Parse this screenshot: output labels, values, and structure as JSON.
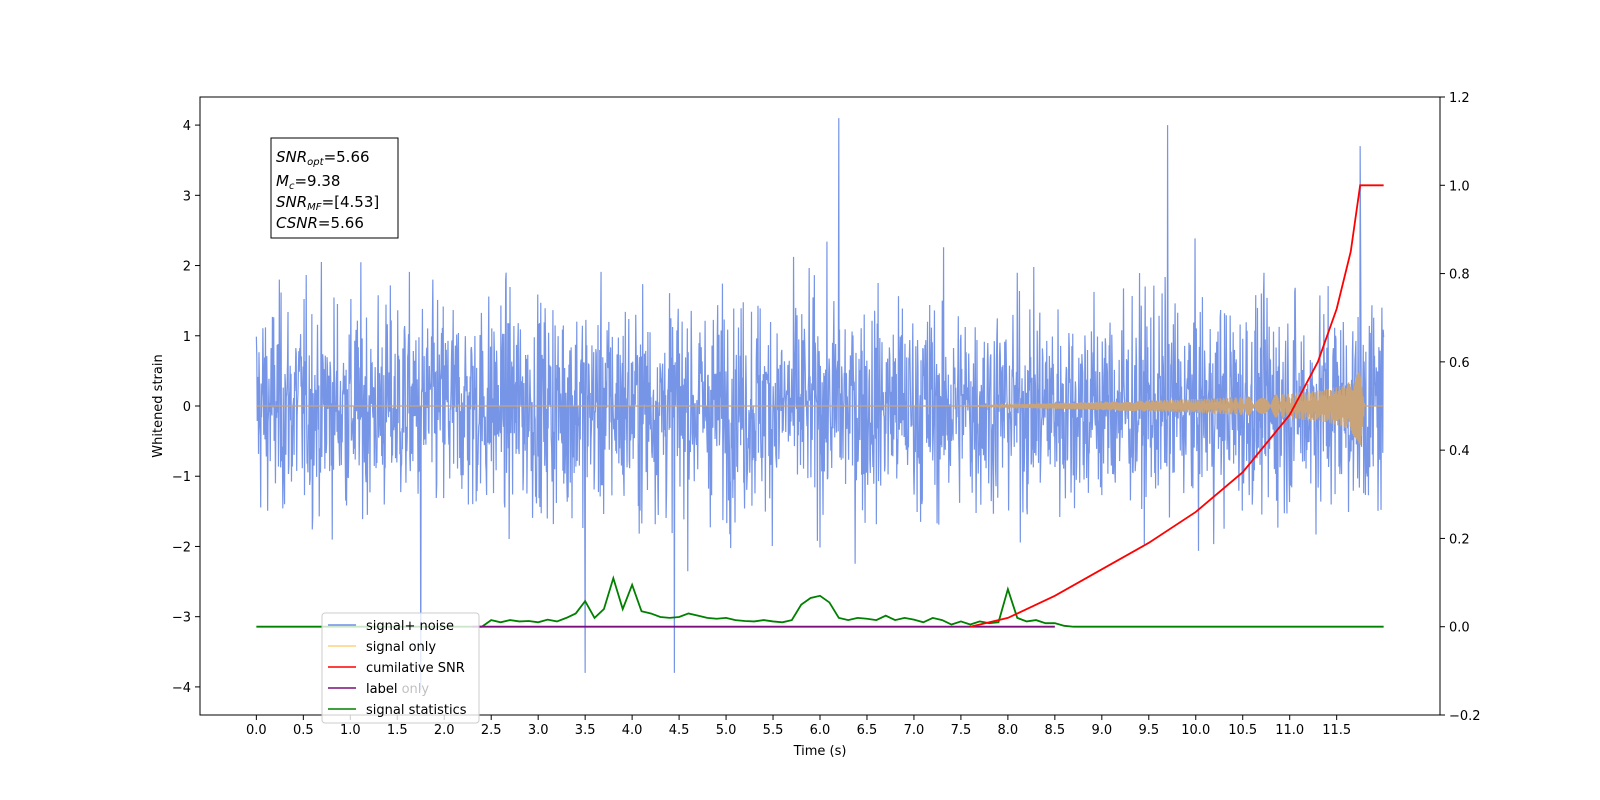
{
  "chart_data": {
    "type": "line",
    "xlabel": "Time (s)",
    "ylabel": "Whitened strain",
    "xlim": [
      -0.6,
      12.6
    ],
    "ylim": [
      -4.4,
      4.4
    ],
    "y2lim": [
      -0.2,
      1.2
    ],
    "x_ticks": [
      0.0,
      0.5,
      1.0,
      1.5,
      2.0,
      2.5,
      3.0,
      3.5,
      4.0,
      4.5,
      5.0,
      5.5,
      6.0,
      6.5,
      7.0,
      7.5,
      8.0,
      8.5,
      9.0,
      9.5,
      10.0,
      10.5,
      11.0,
      11.5
    ],
    "x_tick_labels": [
      "0.0",
      "0.5",
      "1.0",
      "1.5",
      "2.0",
      "2.5",
      "3.0",
      "3.5",
      "4.0",
      "4.5",
      "5.0",
      "5.5",
      "6.0",
      "6.5",
      "7.0",
      "7.5",
      "8.0",
      "8.5",
      "9.0",
      "9.5",
      "10.0",
      "10.5",
      "11.0",
      "11.5"
    ],
    "y_ticks": [
      -4,
      -3,
      -2,
      -1,
      0,
      1,
      2,
      3,
      4
    ],
    "y_tick_labels": [
      "−4",
      "−3",
      "−2",
      "−1",
      "0",
      "1",
      "2",
      "3",
      "4"
    ],
    "y2_ticks": [
      -0.2,
      0.0,
      0.2,
      0.4,
      0.6,
      0.8,
      1.0,
      1.2
    ],
    "y2_tick_labels": [
      "−0.2",
      "0.0",
      "0.2",
      "0.4",
      "0.6",
      "0.8",
      "1.0",
      "1.2"
    ],
    "grid": false,
    "legend_position": "bottom-left",
    "annotations": {
      "snr_opt": {
        "base": "SNR",
        "sub": "opt",
        "value": "=5.66"
      },
      "mc": {
        "base": "M",
        "sub": "c",
        "value": "=9.38"
      },
      "snr_mf": {
        "base": "SNR",
        "sub": "MF",
        "value": "=[4.53]"
      },
      "csnr": {
        "base": "CSNR",
        "sub": "",
        "value": "=5.66"
      }
    },
    "series": [
      {
        "name": "signal+ noise",
        "color": "#6f8fe6",
        "axis": "left",
        "x_range": [
          0.0,
          12.0
        ],
        "amplitude_envelope": [
          -3.8,
          4.1
        ],
        "description_points": [
          [
            1.75,
            -4.05
          ],
          [
            3.5,
            -3.8
          ],
          [
            4.45,
            -3.8
          ],
          [
            6.2,
            4.1
          ],
          [
            9.7,
            4.0
          ],
          [
            11.75,
            3.7
          ]
        ]
      },
      {
        "name": "signal only",
        "color": "#c9a47a",
        "axis": "left",
        "x": [
          0.0,
          7.5,
          8.0,
          8.5,
          9.0,
          9.5,
          10.0,
          10.5,
          11.0,
          11.3,
          11.5,
          11.65,
          11.75,
          11.8,
          12.0
        ],
        "envelope": [
          0.0,
          0.0,
          0.02,
          0.04,
          0.06,
          0.08,
          0.1,
          0.13,
          0.18,
          0.22,
          0.27,
          0.35,
          0.62,
          0.0,
          0.0
        ]
      },
      {
        "name": "cumilative SNR",
        "color": "#ff0000",
        "axis": "right",
        "x": [
          7.6,
          8.0,
          8.5,
          9.0,
          9.5,
          10.0,
          10.5,
          11.0,
          11.3,
          11.5,
          11.65,
          11.75,
          11.76,
          12.0
        ],
        "y": [
          0.0,
          0.02,
          0.07,
          0.13,
          0.19,
          0.26,
          0.35,
          0.48,
          0.6,
          0.72,
          0.85,
          1.0,
          1.0,
          1.0
        ]
      },
      {
        "name": "label",
        "color": "#7b0f7b",
        "axis": "right",
        "x": [
          2.3,
          8.5
        ],
        "y": [
          0.0,
          0.0
        ]
      },
      {
        "name": "label only",
        "color": "#7b0f7b",
        "axis": "right",
        "x": [],
        "y": []
      },
      {
        "name": "signal statistics",
        "color": "#008000",
        "axis": "right",
        "x": [
          0.0,
          2.3,
          2.4,
          2.5,
          2.6,
          2.7,
          2.8,
          2.9,
          3.0,
          3.1,
          3.2,
          3.3,
          3.4,
          3.5,
          3.6,
          3.7,
          3.8,
          3.9,
          4.0,
          4.1,
          4.2,
          4.3,
          4.4,
          4.5,
          4.6,
          4.7,
          4.8,
          4.9,
          5.0,
          5.1,
          5.2,
          5.3,
          5.4,
          5.5,
          5.6,
          5.7,
          5.8,
          5.9,
          6.0,
          6.1,
          6.2,
          6.3,
          6.4,
          6.5,
          6.6,
          6.7,
          6.8,
          6.9,
          7.0,
          7.1,
          7.2,
          7.3,
          7.4,
          7.5,
          7.6,
          7.7,
          7.8,
          7.9,
          8.0,
          8.1,
          8.2,
          8.3,
          8.4,
          8.5,
          8.6,
          8.7,
          9.0,
          12.0
        ],
        "y": [
          0.0,
          0.0,
          0.0,
          0.015,
          0.01,
          0.015,
          0.012,
          0.013,
          0.01,
          0.016,
          0.012,
          0.02,
          0.03,
          0.058,
          0.02,
          0.04,
          0.11,
          0.04,
          0.095,
          0.035,
          0.03,
          0.022,
          0.02,
          0.022,
          0.03,
          0.025,
          0.02,
          0.018,
          0.02,
          0.015,
          0.013,
          0.012,
          0.015,
          0.012,
          0.01,
          0.015,
          0.05,
          0.065,
          0.07,
          0.055,
          0.02,
          0.015,
          0.02,
          0.018,
          0.015,
          0.025,
          0.015,
          0.02,
          0.016,
          0.01,
          0.02,
          0.015,
          0.005,
          0.012,
          0.005,
          0.012,
          0.008,
          0.01,
          0.085,
          0.02,
          0.012,
          0.015,
          0.008,
          0.008,
          0.002,
          0.0,
          0.0,
          0.0
        ]
      }
    ]
  }
}
